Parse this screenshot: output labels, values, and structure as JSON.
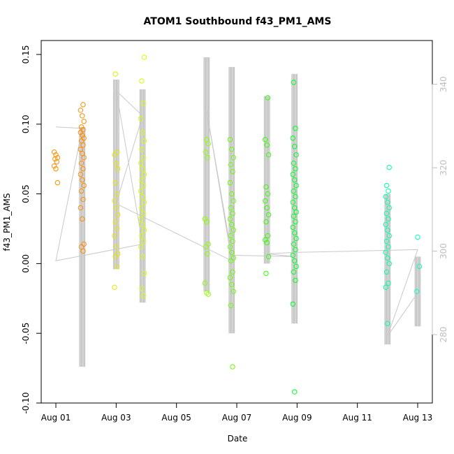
{
  "chart_data": {
    "type": "scatter",
    "title": "ATOM1 Southbound f43_PM1_AMS",
    "xlabel": "Date",
    "ylabel": "f43_PM1_AMS",
    "xlim": [
      "2015-08-01",
      "2015-08-13"
    ],
    "ylim": [
      -0.1,
      0.16
    ],
    "x_ticks": [
      "Aug 01",
      "Aug 03",
      "Aug 05",
      "Aug 07",
      "Aug 09",
      "Aug 11",
      "Aug 13"
    ],
    "x_tick_dates": [
      "2015-08-01",
      "2015-08-03",
      "2015-08-05",
      "2015-08-07",
      "2015-08-09",
      "2015-08-11",
      "2015-08-13"
    ],
    "y_ticks": [
      "-0.10",
      "-0.05",
      "0.00",
      "0.05",
      "0.10",
      "0.15"
    ],
    "y_tick_values": [
      -0.1,
      -0.05,
      0.0,
      0.05,
      0.1,
      0.15
    ],
    "y2_ticks": [
      "280",
      "300",
      "320",
      "340"
    ],
    "y2_tick_values": [
      280,
      300,
      320,
      340
    ],
    "y2lim": [
      263.6,
      350.5
    ],
    "grid": false,
    "marker": "open-circle",
    "colors": {
      "Aug 01": "#ff8c00",
      "Aug 01 late": "#ff8c00",
      "Aug 03": "#e6e600",
      "Aug 03 late": "#d6ff00",
      "Aug 06": "#8cff00",
      "Aug 07": "#66ff00",
      "Aug 08": "#33ff00",
      "Aug 09": "#00ff22",
      "Aug 12": "#00ffaa",
      "Aug 13": "#00ffc8",
      "ribbon": "#c8c8c8",
      "track": "#c8c8c8"
    },
    "series": [
      {
        "color_key": "Aug 01",
        "x": "2015-08-01T00:00",
        "y": [
          0.08,
          0.078,
          0.076,
          0.075,
          0.073,
          0.07,
          0.068,
          0.058
        ]
      },
      {
        "color_key": "Aug 01 late",
        "x": "2015-08-01T21:00",
        "y": [
          0.114,
          0.11,
          0.106,
          0.102,
          0.098,
          0.096,
          0.094,
          0.092,
          0.09,
          0.088,
          0.085,
          0.082,
          0.079,
          0.076,
          0.072,
          0.068,
          0.064,
          0.06,
          0.056,
          0.052,
          0.046,
          0.04,
          0.032,
          0.014,
          0.012,
          0.009
        ]
      },
      {
        "color_key": "Aug 03",
        "x": "2015-08-03T00:00",
        "y": [
          0.136,
          0.08,
          0.078,
          0.072,
          0.068,
          0.058,
          0.05,
          0.045,
          0.04,
          0.035,
          0.03,
          0.025,
          0.02,
          0.012,
          0.007,
          0.005,
          -0.002,
          -0.017
        ]
      },
      {
        "color_key": "Aug 03 late",
        "x": "2015-08-03T21:00",
        "y": [
          0.148,
          0.131,
          0.115,
          0.104,
          0.094,
          0.088,
          0.082,
          0.076,
          0.072,
          0.068,
          0.064,
          0.06,
          0.056,
          0.052,
          0.048,
          0.044,
          0.04,
          0.036,
          0.032,
          0.028,
          0.024,
          0.02,
          0.016,
          0.012,
          0.005,
          -0.007,
          -0.018,
          -0.023
        ]
      },
      {
        "color_key": "Aug 06",
        "x": "2015-08-06T00:00",
        "y": [
          0.089,
          0.086,
          0.08,
          0.076,
          0.032,
          0.03,
          0.014,
          0.012,
          0.007,
          -0.014,
          -0.021,
          -0.022
        ]
      },
      {
        "color_key": "Aug 07",
        "x": "2015-08-06T20:00",
        "y": [
          0.089,
          0.082,
          0.076,
          0.071,
          0.066,
          0.058,
          0.05,
          0.045,
          0.04,
          0.036,
          0.032,
          0.028,
          0.024,
          0.02,
          0.016,
          0.012,
          0.008,
          0.004,
          0.002,
          -0.006,
          -0.01,
          -0.015,
          -0.02,
          -0.03,
          -0.074
        ]
      },
      {
        "color_key": "Aug 08",
        "x": "2015-08-08T00:00",
        "y": [
          0.119,
          0.089,
          0.085,
          0.078,
          0.055,
          0.05,
          0.045,
          0.04,
          0.035,
          0.03,
          0.02,
          0.017,
          0.015,
          0.005,
          -0.007
        ]
      },
      {
        "color_key": "Aug 09",
        "x": "2015-08-08T22:00",
        "y": [
          0.13,
          0.097,
          0.09,
          0.084,
          0.078,
          0.072,
          0.068,
          0.064,
          0.06,
          0.056,
          0.052,
          0.048,
          0.044,
          0.04,
          0.037,
          0.034,
          0.03,
          0.026,
          0.022,
          0.018,
          0.014,
          0.01,
          0.006,
          0.002,
          -0.002,
          -0.006,
          -0.012,
          -0.029,
          -0.092
        ]
      },
      {
        "color_key": "Aug 12",
        "x": "2015-08-12T00:00",
        "y": [
          0.069,
          0.056,
          0.052,
          0.048,
          0.044,
          0.04,
          0.036,
          0.032,
          0.028,
          0.024,
          0.02,
          0.016,
          0.012,
          0.008,
          0.004,
          0.0,
          -0.006,
          -0.014,
          -0.017,
          -0.043
        ]
      },
      {
        "color_key": "Aug 13",
        "x": "2015-08-13T00:00",
        "y": [
          0.019,
          -0.002,
          -0.02
        ]
      }
    ],
    "ribbons": [
      {
        "x": "2015-08-01T21:00",
        "ymin": -0.074,
        "ymax": 0.098
      },
      {
        "x": "2015-08-03T00:00",
        "ymin": -0.004,
        "ymax": 0.132
      },
      {
        "x": "2015-08-03T21:00",
        "ymin": -0.028,
        "ymax": 0.125
      },
      {
        "x": "2015-08-06T00:00",
        "ymin": -0.02,
        "ymax": 0.148
      },
      {
        "x": "2015-08-06T20:00",
        "ymin": -0.05,
        "ymax": 0.141
      },
      {
        "x": "2015-08-08T00:00",
        "ymin": 0.0,
        "ymax": 0.12
      },
      {
        "x": "2015-08-08T22:00",
        "ymin": -0.043,
        "ymax": 0.136
      },
      {
        "x": "2015-08-12T00:00",
        "ymin": -0.058,
        "ymax": 0.05
      },
      {
        "x": "2015-08-13T00:00",
        "ymin": -0.045,
        "ymax": 0.005
      }
    ],
    "track": [
      {
        "x": "2015-08-01T00:00",
        "y": 0.098
      },
      {
        "x": "2015-08-01T21:00",
        "y": 0.097
      },
      {
        "x": "2015-08-01T00:00",
        "y": 0.002
      },
      {
        "x": "2015-08-03T21:00",
        "y": 0.014
      },
      {
        "x": "2015-08-03T00:00",
        "y": 0.124
      },
      {
        "x": "2015-08-03T21:00",
        "y": 0.106
      },
      {
        "x": "2015-08-03T00:00",
        "y": 0.043
      },
      {
        "x": "2015-08-06T20:00",
        "y": 0.002
      },
      {
        "x": "2015-08-06T00:00",
        "y": 0.11
      },
      {
        "x": "2015-08-06T20:00",
        "y": 0.006
      },
      {
        "x": "2015-08-08T22:00",
        "y": 0.005
      },
      {
        "x": "2015-08-08T00:00",
        "y": 0.007
      },
      {
        "x": "2015-08-08T22:00",
        "y": 0.008
      },
      {
        "x": "2015-08-13T00:00",
        "y": 0.01
      },
      {
        "x": "2015-08-12T00:00",
        "y": -0.052
      },
      {
        "x": "2015-08-13T00:00",
        "y": -0.021
      }
    ]
  }
}
